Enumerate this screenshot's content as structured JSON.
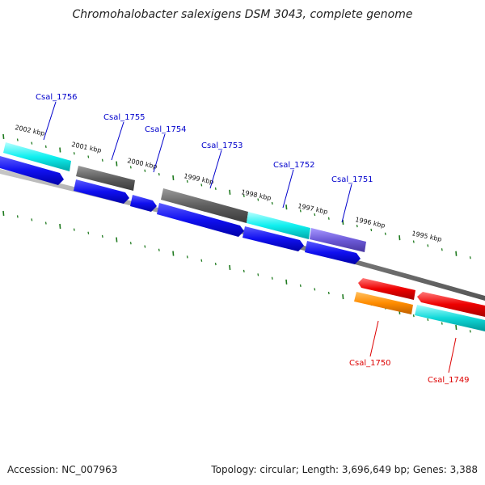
{
  "title": "Chromohalobacter salexigens DSM 3043, complete genome",
  "footer": {
    "accession": "Accession: NC_007963",
    "info": "Topology: circular; Length: 3,696,649 bp; Genes: 3,388"
  },
  "colors": {
    "forward_cds": "#1a1aff",
    "tick_marks": "#1f7a1f",
    "backbone": "#7a7a7a",
    "forward_label": "#0000cc",
    "reverse_label": "#dd0000"
  },
  "kbp_ticks": [
    "2002 kbp",
    "2001 kbp",
    "2000 kbp",
    "1999 kbp",
    "1998 kbp",
    "1997 kbp",
    "1996 kbp",
    "1995 kbp"
  ],
  "genes": [
    {
      "label": "Csal_1756",
      "strand": "forward",
      "color": "#00e5e5"
    },
    {
      "label": "Csal_1755",
      "strand": "forward",
      "color": "#666666"
    },
    {
      "label": "Csal_1754",
      "strand": "forward",
      "color": "#0000ee"
    },
    {
      "label": "Csal_1753",
      "strand": "forward",
      "color": "#666666"
    },
    {
      "label": "Csal_1752",
      "strand": "forward",
      "color": "#00e5e5"
    },
    {
      "label": "Csal_1751",
      "strand": "forward",
      "color": "#7060d0"
    },
    {
      "label": "Csal_1750",
      "strand": "reverse",
      "color": "#ff8c00"
    },
    {
      "label": "Csal_1749",
      "strand": "reverse",
      "color": "#00c8c8"
    }
  ]
}
